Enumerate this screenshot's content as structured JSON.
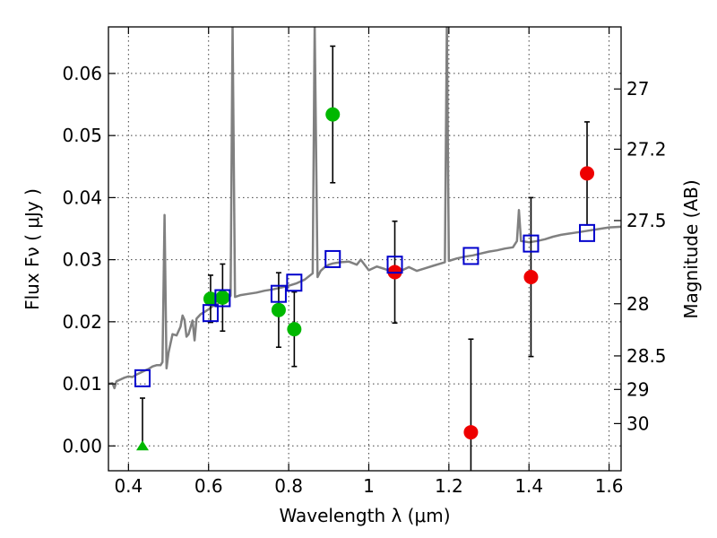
{
  "chart_data": {
    "type": "scatter",
    "xlabel": "Wavelength  λ (μm)",
    "ylabel": "Flux  Fν  ( μJy )",
    "ylabel_right": "Magnitude (AB)",
    "xlim": [
      0.35,
      1.63
    ],
    "ylim": [
      -0.004,
      0.0675
    ],
    "x_ticks": [
      0.4,
      0.6,
      0.8,
      1.0,
      1.2,
      1.4,
      1.6
    ],
    "x_tick_labels": [
      "0.4",
      "0.6",
      "0.8",
      "1",
      "1.2",
      "1.4",
      "1.6"
    ],
    "y_ticks": [
      0.0,
      0.01,
      0.02,
      0.03,
      0.04,
      0.05,
      0.06
    ],
    "y_tick_labels": [
      "0.00",
      "0.01",
      "0.02",
      "0.03",
      "0.04",
      "0.05",
      "0.06"
    ],
    "mag_ticks": [
      {
        "label": "27",
        "flux": 0.0575
      },
      {
        "label": "27.2",
        "flux": 0.0478
      },
      {
        "label": "27.5",
        "flux": 0.0363
      },
      {
        "label": "28",
        "flux": 0.0229
      },
      {
        "label": "28.5",
        "flux": 0.0145
      },
      {
        "label": "29",
        "flux": 0.0091
      },
      {
        "label": "30",
        "flux": 0.0036
      }
    ],
    "grid": true,
    "colors": {
      "spectrum": "#808080",
      "green": "#00b800",
      "red": "#ee0000",
      "model": "#0000cc",
      "errorbar": "#000000"
    },
    "series": [
      {
        "kind": "observed",
        "color_key": "green",
        "points": [
          {
            "x": 0.605,
            "y": 0.0237,
            "err": 0.0038
          },
          {
            "x": 0.635,
            "y": 0.0239,
            "err": 0.0054
          },
          {
            "x": 0.775,
            "y": 0.0219,
            "err": 0.006
          },
          {
            "x": 0.814,
            "y": 0.0188,
            "err": 0.006
          },
          {
            "x": 0.91,
            "y": 0.0534,
            "err": 0.011
          }
        ]
      },
      {
        "kind": "observed",
        "color_key": "red",
        "points": [
          {
            "x": 1.065,
            "y": 0.028,
            "err": 0.0082
          },
          {
            "x": 1.255,
            "y": 0.0022,
            "err": 0.015
          },
          {
            "x": 1.405,
            "y": 0.0272,
            "err": 0.0128
          },
          {
            "x": 1.545,
            "y": 0.0439,
            "err": 0.0083
          }
        ]
      },
      {
        "kind": "upper-limit",
        "color_key": "green",
        "points": [
          {
            "x": 0.435,
            "y": 0.0,
            "err": 0.0077
          }
        ]
      },
      {
        "kind": "model-photometry",
        "color_key": "model",
        "points": [
          {
            "x": 0.435,
            "y": 0.0109
          },
          {
            "x": 0.605,
            "y": 0.0214
          },
          {
            "x": 0.635,
            "y": 0.0238
          },
          {
            "x": 0.775,
            "y": 0.0245
          },
          {
            "x": 0.814,
            "y": 0.0263
          },
          {
            "x": 0.91,
            "y": 0.0301
          },
          {
            "x": 1.065,
            "y": 0.0292
          },
          {
            "x": 1.255,
            "y": 0.0306
          },
          {
            "x": 1.405,
            "y": 0.0326
          },
          {
            "x": 1.545,
            "y": 0.0343
          }
        ]
      }
    ],
    "spectrum": [
      [
        0.35,
        0.01
      ],
      [
        0.36,
        0.0101
      ],
      [
        0.365,
        0.0093
      ],
      [
        0.37,
        0.0104
      ],
      [
        0.38,
        0.0107
      ],
      [
        0.39,
        0.011
      ],
      [
        0.4,
        0.0112
      ],
      [
        0.41,
        0.0111
      ],
      [
        0.42,
        0.0115
      ],
      [
        0.43,
        0.0118
      ],
      [
        0.44,
        0.0121
      ],
      [
        0.45,
        0.0124
      ],
      [
        0.46,
        0.0128
      ],
      [
        0.47,
        0.013
      ],
      [
        0.48,
        0.013
      ],
      [
        0.485,
        0.0135
      ],
      [
        0.49,
        0.0372
      ],
      [
        0.495,
        0.0125
      ],
      [
        0.5,
        0.015
      ],
      [
        0.51,
        0.018
      ],
      [
        0.52,
        0.0178
      ],
      [
        0.53,
        0.0192
      ],
      [
        0.535,
        0.021
      ],
      [
        0.54,
        0.0203
      ],
      [
        0.545,
        0.0176
      ],
      [
        0.55,
        0.018
      ],
      [
        0.56,
        0.0202
      ],
      [
        0.565,
        0.017
      ],
      [
        0.57,
        0.0205
      ],
      [
        0.58,
        0.0212
      ],
      [
        0.59,
        0.0216
      ],
      [
        0.6,
        0.022
      ],
      [
        0.61,
        0.0225
      ],
      [
        0.62,
        0.0228
      ],
      [
        0.63,
        0.0232
      ],
      [
        0.64,
        0.0234
      ],
      [
        0.65,
        0.0238
      ],
      [
        0.655,
        0.0242
      ],
      [
        0.66,
        0.068
      ],
      [
        0.666,
        0.024
      ],
      [
        0.68,
        0.0243
      ],
      [
        0.7,
        0.0245
      ],
      [
        0.72,
        0.0247
      ],
      [
        0.74,
        0.025
      ],
      [
        0.76,
        0.0252
      ],
      [
        0.78,
        0.0255
      ],
      [
        0.8,
        0.0258
      ],
      [
        0.82,
        0.0262
      ],
      [
        0.84,
        0.0268
      ],
      [
        0.86,
        0.0278
      ],
      [
        0.865,
        0.068
      ],
      [
        0.872,
        0.0272
      ],
      [
        0.88,
        0.0282
      ],
      [
        0.89,
        0.0288
      ],
      [
        0.9,
        0.0292
      ],
      [
        0.91,
        0.0294
      ],
      [
        0.93,
        0.0296
      ],
      [
        0.95,
        0.0297
      ],
      [
        0.97,
        0.0292
      ],
      [
        0.98,
        0.03
      ],
      [
        1.0,
        0.0283
      ],
      [
        1.02,
        0.0289
      ],
      [
        1.04,
        0.0285
      ],
      [
        1.06,
        0.028
      ],
      [
        1.08,
        0.0282
      ],
      [
        1.1,
        0.0288
      ],
      [
        1.12,
        0.0282
      ],
      [
        1.14,
        0.0286
      ],
      [
        1.16,
        0.029
      ],
      [
        1.18,
        0.0294
      ],
      [
        1.19,
        0.0296
      ],
      [
        1.195,
        0.068
      ],
      [
        1.2,
        0.0298
      ],
      [
        1.22,
        0.0302
      ],
      [
        1.24,
        0.0305
      ],
      [
        1.26,
        0.0307
      ],
      [
        1.28,
        0.031
      ],
      [
        1.3,
        0.0313
      ],
      [
        1.32,
        0.0315
      ],
      [
        1.34,
        0.0318
      ],
      [
        1.36,
        0.032
      ],
      [
        1.37,
        0.033
      ],
      [
        1.375,
        0.038
      ],
      [
        1.38,
        0.033
      ],
      [
        1.4,
        0.0328
      ],
      [
        1.42,
        0.033
      ],
      [
        1.44,
        0.0333
      ],
      [
        1.46,
        0.0337
      ],
      [
        1.48,
        0.034
      ],
      [
        1.5,
        0.0342
      ],
      [
        1.52,
        0.0344
      ],
      [
        1.54,
        0.0346
      ],
      [
        1.56,
        0.0348
      ],
      [
        1.58,
        0.035
      ],
      [
        1.6,
        0.0352
      ],
      [
        1.63,
        0.0353
      ]
    ]
  }
}
